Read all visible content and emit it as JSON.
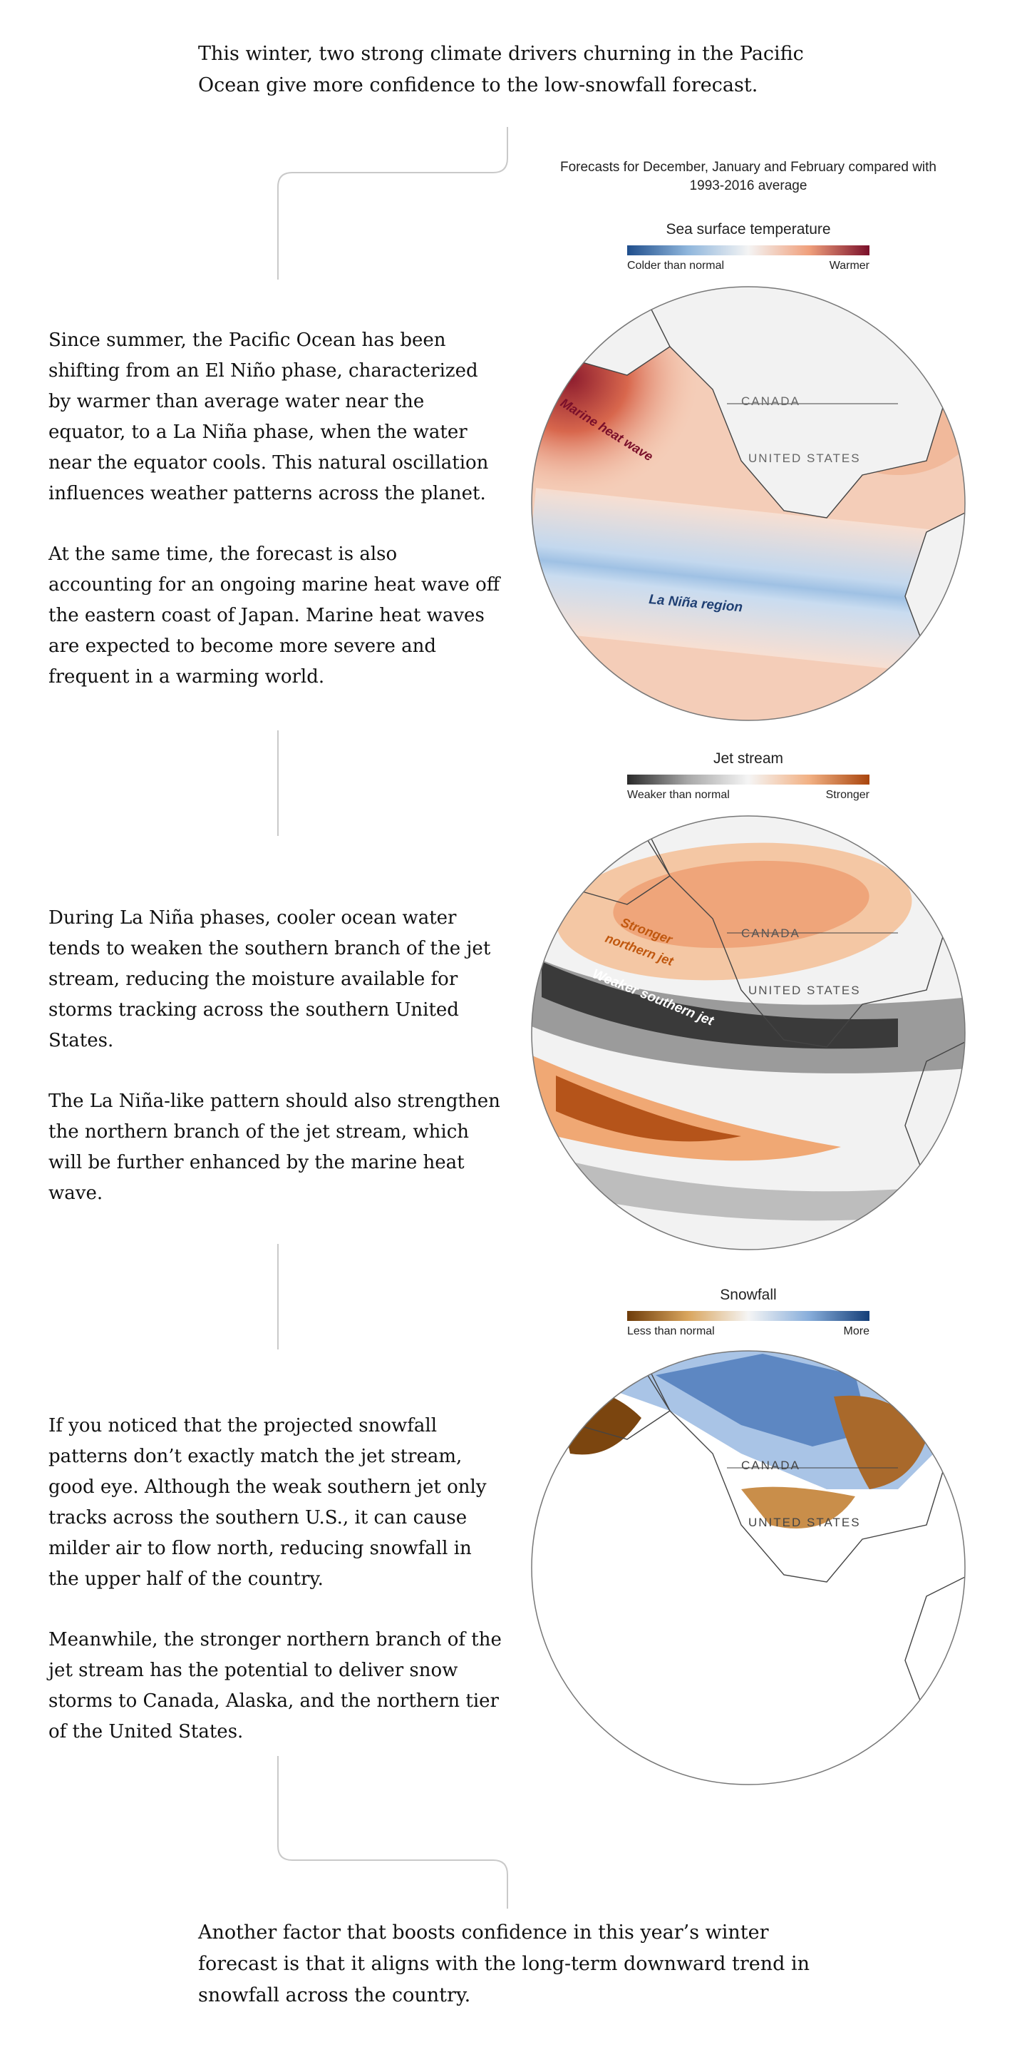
{
  "intro_text": "This winter, two strong climate drivers churning in the Pacific Ocean give more confidence to the low-snowfall forecast.",
  "forecast_note": "Forecasts for December, January and February compared with 1993-2016 average",
  "sections": [
    {
      "paragraphs": [
        "Since summer, the Pacific Ocean has been shifting from an El Niño phase, characterized by warmer than average water near the equator, to a La Niña phase, when the water near the equator cools. This natural oscillation influences weather patterns across the planet.",
        "At the same time, the forecast is also accounting for an ongoing marine heat wave off the eastern coast of Japan. Marine heat waves are expected to become more severe and frequent in a warming world."
      ],
      "legend": {
        "title": "Sea surface temperature",
        "low": "Colder than normal",
        "high": "Warmer",
        "colors": [
          "#1f4e8c",
          "#8fb6dc",
          "#f4f4f4",
          "#f0a07c",
          "#7a0f2a"
        ]
      },
      "labels": {
        "canada": "CANADA",
        "us": "UNITED STATES",
        "region_a": "Marine heat wave",
        "region_b": "La Niña region"
      }
    },
    {
      "paragraphs": [
        "During La Niña phases, cooler ocean water tends to weaken the southern branch of the jet stream, reducing the moisture available for storms tracking across the southern United States.",
        "The La Niña-like pattern should also strengthen the northern branch of the jet stream, which will be further enhanced by the marine heat wave."
      ],
      "legend": {
        "title": "Jet stream",
        "low": "Weaker than normal",
        "high": "Stronger",
        "colors": [
          "#2a2a2a",
          "#a8a8a8",
          "#f5f5f5",
          "#f2b184",
          "#a9450d"
        ]
      },
      "labels": {
        "canada": "CANADA",
        "us": "UNITED STATES",
        "region_a_line1": "Stronger",
        "region_a_line2": "northern jet",
        "region_b": "Weaker southern jet"
      }
    },
    {
      "paragraphs": [
        "If you noticed that the projected snowfall patterns don’t exactly match the jet stream, good eye. Although the weak southern jet only tracks across the southern U.S., it can cause milder air to flow north, reducing snowfall in the upper half of the country.",
        "Meanwhile, the stronger northern branch of the jet stream has the potential to deliver snow storms to Canada, Alaska, and the northern tier of the United States."
      ],
      "legend": {
        "title": "Snowfall",
        "low": "Less than normal",
        "high": "More",
        "colors": [
          "#6e3c0a",
          "#d9a55d",
          "#f5f5f5",
          "#88aedb",
          "#143e78"
        ]
      },
      "labels": {
        "canada": "CANADA",
        "us": "UNITED STATES"
      }
    }
  ],
  "outro_text": "Another factor that boosts confidence in this year’s winter forecast is that it aligns with the long-term downward trend in snowfall across the country."
}
